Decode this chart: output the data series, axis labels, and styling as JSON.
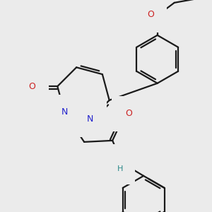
{
  "background_color": "#ebebeb",
  "bond_color": "#1a1a1a",
  "bond_width": 1.6,
  "figsize": [
    3.0,
    3.0
  ],
  "dpi": 100,
  "atom_colors": {
    "N": "#2222cc",
    "O": "#cc2222",
    "NH": "#2a8888"
  }
}
